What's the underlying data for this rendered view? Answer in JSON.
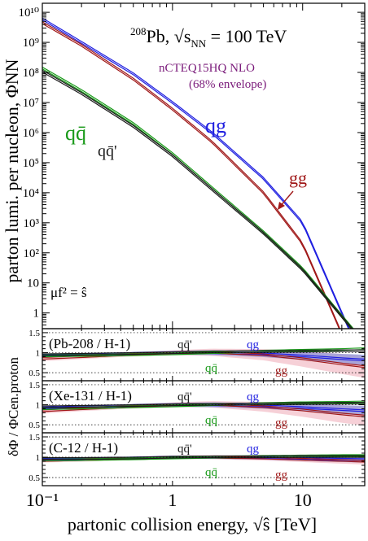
{
  "chart_data": {
    "type": "line",
    "title": "208Pb, √sNN = 100 TeV",
    "title_parts": {
      "sup": "208",
      "element": "Pb,",
      "sqrt": "s",
      "sub": "NN",
      "rest": " = 100 TeV"
    },
    "set_label": "nCTEQ15HQ NLO",
    "set_note": "(68% envelope)",
    "scale_note": "μf² = ŝ",
    "xlabel": "partonic collision energy, √ŝ  [TeV]",
    "xscale": "log",
    "xlim": [
      0.1,
      30
    ],
    "x_ticks": [
      {
        "v": 0.1,
        "label": "10⁻¹"
      },
      {
        "v": 1,
        "label": "1"
      },
      {
        "v": 10,
        "label": "10"
      }
    ],
    "colors": {
      "qg": "#1f1fe0",
      "gg": "#a01818",
      "qq": "#1a9a1a",
      "qqp": "#1a1a1a",
      "set": "#7a1a7a",
      "band_gg": "#f4c8d0",
      "band_blue": "#6a7fd8"
    },
    "panels": [
      {
        "id": "main",
        "yscale": "log",
        "ylabel": "parton lumi. per nucleon, ΦNN",
        "ylim": [
          0.3,
          20000000000.0
        ],
        "y_ticks": [
          {
            "v": 1,
            "label": "1"
          },
          {
            "v": 10,
            "label": "10"
          },
          {
            "v": 100,
            "label": "10²"
          },
          {
            "v": 1000,
            "label": "10³"
          },
          {
            "v": 10000,
            "label": "10⁴"
          },
          {
            "v": 100000,
            "label": "10⁵"
          },
          {
            "v": 1000000,
            "label": "10⁶"
          },
          {
            "v": 10000000,
            "label": "10⁷"
          },
          {
            "v": 100000000,
            "label": "10⁸"
          },
          {
            "v": 1000000000,
            "label": "10⁹"
          },
          {
            "v": 10000000000,
            "label": "10¹⁰"
          }
        ],
        "x": [
          0.1,
          0.2,
          0.5,
          1,
          2,
          5,
          10,
          20,
          30
        ],
        "series": [
          {
            "name": "qg",
            "key": "qg",
            "color": "#1f1fe0",
            "values": [
              6000000000.0,
              1000000000.0,
              90000000.0,
              10000000.0,
              1000000.0,
              30000.0,
              1000.0,
              1.0,
              0.02
            ]
          },
          {
            "name": "gg",
            "key": "gg",
            "color": "#a01818",
            "values": [
              4500000000.0,
              800000000.0,
              60000000.0,
              6000000.0,
              500000.0,
              10000.0,
              200.0,
              0.2,
              0.002
            ]
          },
          {
            "name": "qq̄",
            "key": "qq",
            "color": "#1a9a1a",
            "values": [
              140000000.0,
              25000000.0,
              2000000.0,
              200000.0,
              15000.0,
              500.0,
              30.0,
              0.8,
              0.1
            ]
          },
          {
            "name": "qq̄'",
            "key": "qqp",
            "color": "#1a1a1a",
            "values": [
              110000000.0,
              20000000.0,
              1600000.0,
              170000.0,
              13000.0,
              450.0,
              27.0,
              0.75,
              0.09
            ]
          }
        ],
        "labels": {
          "qg": "qg",
          "gg": "gg",
          "qq": "qq̄",
          "qqp": "qq̄'"
        }
      },
      {
        "id": "ratio-pb",
        "title": "(Pb-208 / H-1)",
        "ylim": [
          0.3,
          1.6
        ],
        "y_ticks": [
          {
            "v": 0.5,
            "label": "0.5"
          },
          {
            "v": 1,
            "label": "1"
          },
          {
            "v": 1.5,
            "label": "1.5"
          }
        ],
        "x": [
          0.1,
          0.2,
          0.5,
          1,
          2,
          5,
          10,
          20,
          30
        ],
        "series": [
          {
            "name": "qg",
            "key": "qg",
            "values": [
              0.93,
              0.95,
              0.98,
              1.0,
              1.0,
              0.97,
              0.92,
              0.85,
              0.82
            ]
          },
          {
            "name": "gg",
            "key": "gg",
            "values": [
              0.86,
              0.9,
              0.96,
              1.0,
              1.01,
              0.95,
              0.85,
              0.72,
              0.65
            ]
          },
          {
            "name": "qq̄",
            "key": "qq",
            "values": [
              0.92,
              0.93,
              0.95,
              0.97,
              1.0,
              1.04,
              1.06,
              1.08,
              1.1
            ]
          },
          {
            "name": "qq̄'",
            "key": "qqp",
            "values": [
              0.95,
              0.96,
              0.98,
              1.0,
              1.02,
              1.03,
              1.04,
              1.05,
              1.05
            ]
          }
        ],
        "band_widths": {
          "qg": [
            0.05,
            0.04,
            0.04,
            0.05,
            0.06,
            0.08,
            0.1,
            0.12,
            0.13
          ],
          "gg": [
            0.07,
            0.06,
            0.05,
            0.06,
            0.09,
            0.14,
            0.2,
            0.25,
            0.28
          ]
        },
        "labels": {
          "qqp": "qq̄'",
          "qg": "qg",
          "qq": "qq̄",
          "gg": "gg"
        }
      },
      {
        "id": "ratio-xe",
        "title": "(Xe-131 / H-1)",
        "ylim": [
          0.3,
          1.6
        ],
        "y_ticks": [
          {
            "v": 0.5,
            "label": "0.5"
          },
          {
            "v": 1,
            "label": "1"
          },
          {
            "v": 1.5,
            "label": "1.5"
          }
        ],
        "x": [
          0.1,
          0.2,
          0.5,
          1,
          2,
          5,
          10,
          20,
          30
        ],
        "series": [
          {
            "name": "qg",
            "key": "qg",
            "values": [
              0.92,
              0.95,
              0.98,
              1.0,
              1.0,
              0.97,
              0.93,
              0.88,
              0.85
            ]
          },
          {
            "name": "gg",
            "key": "gg",
            "values": [
              0.85,
              0.9,
              0.96,
              1.0,
              1.01,
              0.95,
              0.87,
              0.77,
              0.72
            ]
          },
          {
            "name": "qq̄",
            "key": "qq",
            "values": [
              0.9,
              0.92,
              0.95,
              0.97,
              1.0,
              1.03,
              1.05,
              1.06,
              1.07
            ]
          },
          {
            "name": "qq̄'",
            "key": "qqp",
            "values": [
              0.95,
              0.96,
              0.98,
              1.0,
              1.01,
              1.02,
              1.03,
              1.04,
              1.04
            ]
          }
        ],
        "band_widths": {
          "qg": [
            0.05,
            0.04,
            0.04,
            0.05,
            0.06,
            0.07,
            0.09,
            0.11,
            0.12
          ],
          "gg": [
            0.07,
            0.06,
            0.05,
            0.06,
            0.08,
            0.12,
            0.17,
            0.22,
            0.24
          ]
        },
        "labels": {
          "qqp": "qq̄'",
          "qg": "qg",
          "qq": "qq̄",
          "gg": "gg"
        }
      },
      {
        "id": "ratio-c",
        "title": "(C-12 / H-1)",
        "ylim": [
          0.3,
          1.6
        ],
        "y_ticks": [
          {
            "v": 0.5,
            "label": "0.5"
          },
          {
            "v": 1,
            "label": "1"
          },
          {
            "v": 1.5,
            "label": "1.5"
          }
        ],
        "x": [
          0.1,
          0.2,
          0.5,
          1,
          2,
          5,
          10,
          20,
          30
        ],
        "series": [
          {
            "name": "qg",
            "key": "qg",
            "values": [
              0.95,
              0.96,
              0.98,
              1.0,
              1.0,
              0.99,
              0.97,
              0.95,
              0.94
            ]
          },
          {
            "name": "gg",
            "key": "gg",
            "values": [
              0.92,
              0.94,
              0.97,
              1.0,
              1.0,
              0.98,
              0.95,
              0.92,
              0.9
            ]
          },
          {
            "name": "qq̄",
            "key": "qq",
            "values": [
              0.93,
              0.94,
              0.96,
              0.98,
              1.0,
              1.02,
              1.03,
              1.04,
              1.04
            ]
          },
          {
            "name": "qq̄'",
            "key": "qqp",
            "values": [
              0.97,
              0.97,
              0.98,
              1.0,
              1.01,
              1.01,
              1.02,
              1.02,
              1.02
            ]
          }
        ],
        "band_widths": {
          "qg": [
            0.04,
            0.04,
            0.04,
            0.04,
            0.04,
            0.05,
            0.06,
            0.07,
            0.07
          ],
          "gg": [
            0.05,
            0.05,
            0.04,
            0.04,
            0.05,
            0.06,
            0.07,
            0.08,
            0.08
          ]
        },
        "labels": {
          "qqp": "qq̄'",
          "qg": "qg",
          "qq": "qq̄",
          "gg": "gg"
        }
      }
    ],
    "ratio_ylabel": "δΦ / ΦCen.proton"
  }
}
